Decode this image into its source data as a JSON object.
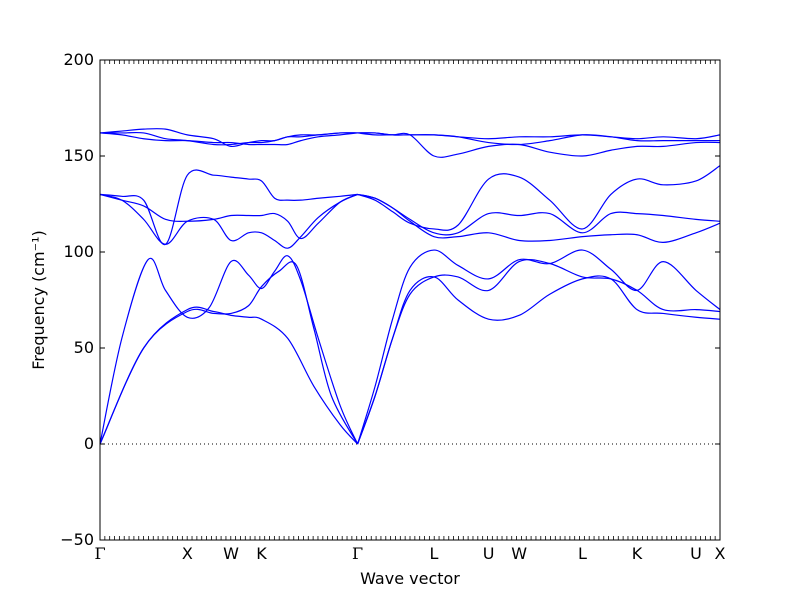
{
  "chart_data": {
    "type": "line",
    "title": "",
    "xlabel": "Wave vector",
    "ylabel": "Frequency (cm⁻¹)",
    "ylim": [
      -50,
      200
    ],
    "yticks": [
      -50,
      0,
      50,
      100,
      150,
      200
    ],
    "xlim": [
      0,
      14.2
    ],
    "zero_line": true,
    "line_color": "#0000ff",
    "high_symmetry_points": [
      {
        "label": "Γ",
        "x": 0
      },
      {
        "label": "X",
        "x": 2.0
      },
      {
        "label": "W",
        "x": 3.0
      },
      {
        "label": "K",
        "x": 3.7
      },
      {
        "label": "Γ",
        "x": 5.9
      },
      {
        "label": "L",
        "x": 7.65
      },
      {
        "label": "U",
        "x": 8.9
      },
      {
        "label": "W",
        "x": 9.6
      },
      {
        "label": "L",
        "x": 11.05
      },
      {
        "label": "K",
        "x": 12.3
      },
      {
        "label": "U",
        "x": 13.65
      },
      {
        "label": "X",
        "x": 14.2
      }
    ],
    "series": [
      {
        "x": [
          0,
          1.0,
          2.0,
          2.6,
          3.0,
          3.4,
          3.7,
          4.3,
          4.9,
          5.5,
          5.9
        ],
        "y": [
          0,
          50,
          70,
          69,
          67,
          66,
          65,
          55,
          30,
          10,
          0
        ]
      },
      {
        "x": [
          0,
          1.0,
          2.0,
          2.6,
          3.0,
          3.4,
          3.7,
          4.1,
          4.5,
          4.9,
          5.3,
          5.9
        ],
        "y": [
          0,
          50,
          69,
          68,
          68,
          72,
          82,
          90,
          93,
          60,
          25,
          0
        ]
      },
      {
        "x": [
          0,
          0.5,
          1.1,
          1.5,
          2.0,
          2.5,
          3.0,
          3.4,
          3.7,
          4.0,
          4.3,
          4.6,
          5.0,
          5.5,
          5.9
        ],
        "y": [
          0,
          55,
          96,
          80,
          66,
          71,
          95,
          88,
          81,
          90,
          98,
          85,
          55,
          20,
          0
        ]
      },
      {
        "x": [
          0,
          0.5,
          1.0,
          1.5,
          2.0,
          2.6,
          3.0,
          3.4,
          3.7,
          4.0,
          4.3,
          4.6,
          5.0,
          5.5,
          5.9
        ],
        "y": [
          130,
          127,
          117,
          104,
          116,
          117,
          106,
          110,
          110,
          106,
          102,
          108,
          118,
          126,
          130
        ]
      },
      {
        "x": [
          0,
          0.5,
          1.0,
          1.5,
          2.0,
          2.6,
          3.0,
          3.4,
          3.7,
          4.0,
          4.3,
          4.6,
          5.0,
          5.5,
          5.9
        ],
        "y": [
          130,
          127,
          124,
          117,
          116,
          117,
          119,
          119,
          119,
          120,
          116,
          107,
          115,
          126,
          130
        ]
      },
      {
        "x": [
          0,
          0.5,
          1.0,
          1.5,
          2.0,
          2.6,
          3.0,
          3.4,
          3.7,
          4.0,
          4.3,
          4.6,
          5.0,
          5.5,
          5.9
        ],
        "y": [
          130,
          129,
          127,
          104,
          140,
          140,
          139,
          138,
          137,
          128,
          127,
          127,
          128,
          129,
          130
        ]
      },
      {
        "x": [
          0,
          0.5,
          1.0,
          1.5,
          2.0,
          2.6,
          3.0,
          3.4,
          3.7,
          4.0,
          4.3,
          4.6,
          5.0,
          5.5,
          5.9
        ],
        "y": [
          162,
          161,
          159,
          158,
          158,
          157,
          157,
          156,
          156,
          156,
          156,
          158,
          160,
          161,
          162
        ]
      },
      {
        "x": [
          0,
          0.5,
          1.0,
          1.5,
          2.0,
          2.6,
          3.0,
          3.4,
          3.7,
          4.0,
          4.3,
          4.6,
          5.0,
          5.5,
          5.9
        ],
        "y": [
          162,
          163,
          164,
          164,
          161,
          159,
          155,
          157,
          158,
          158,
          160,
          161,
          161,
          162,
          162
        ]
      },
      {
        "x": [
          0,
          0.5,
          1.0,
          1.5,
          2.0,
          2.6,
          3.0,
          3.4,
          3.7,
          4.0,
          4.3,
          4.6,
          5.0,
          5.5,
          5.9
        ],
        "y": [
          162,
          162,
          162,
          159,
          158,
          156,
          156,
          157,
          157,
          158,
          160,
          160,
          161,
          162,
          162
        ]
      },
      {
        "x": [
          5.9,
          6.3,
          6.7,
          7.1,
          7.65,
          8.2,
          8.9,
          9.6,
          10.3,
          11.05,
          11.7,
          12.3,
          12.9,
          13.65,
          14.2
        ],
        "y": [
          0,
          25,
          55,
          78,
          87,
          87,
          80,
          95,
          94,
          87,
          86,
          80,
          70,
          70,
          69
        ]
      },
      {
        "x": [
          5.9,
          6.3,
          6.7,
          7.1,
          7.65,
          8.2,
          8.9,
          9.6,
          10.3,
          11.05,
          11.7,
          12.3,
          12.9,
          13.65,
          14.2
        ],
        "y": [
          0,
          25,
          55,
          80,
          87,
          75,
          65,
          67,
          78,
          86,
          86,
          70,
          68,
          66,
          65
        ]
      },
      {
        "x": [
          5.9,
          6.3,
          6.7,
          7.1,
          7.65,
          8.2,
          8.9,
          9.6,
          10.3,
          11.05,
          11.7,
          12.3,
          12.9,
          13.65,
          14.2
        ],
        "y": [
          0,
          30,
          65,
          92,
          101,
          93,
          86,
          96,
          94,
          101,
          91,
          80,
          95,
          80,
          70
        ]
      },
      {
        "x": [
          5.9,
          6.3,
          6.7,
          7.1,
          7.65,
          8.2,
          8.9,
          9.6,
          10.3,
          11.05,
          11.7,
          12.3,
          12.9,
          13.65,
          14.2
        ],
        "y": [
          130,
          127,
          121,
          115,
          112,
          114,
          138,
          139,
          127,
          112,
          130,
          138,
          135,
          137,
          145
        ]
      },
      {
        "x": [
          5.9,
          6.3,
          6.7,
          7.1,
          7.65,
          8.2,
          8.9,
          9.6,
          10.3,
          11.05,
          11.7,
          12.3,
          12.9,
          13.65,
          14.2
        ],
        "y": [
          130,
          128,
          123,
          117,
          110,
          110,
          120,
          119,
          120,
          110,
          120,
          120,
          119,
          117,
          116
        ]
      },
      {
        "x": [
          5.9,
          6.3,
          6.7,
          7.1,
          7.65,
          8.2,
          8.9,
          9.6,
          10.3,
          11.05,
          11.7,
          12.3,
          12.9,
          13.65,
          14.2
        ],
        "y": [
          130,
          128,
          123,
          116,
          108,
          108,
          110,
          106,
          106,
          108,
          109,
          109,
          105,
          110,
          115
        ]
      },
      {
        "x": [
          5.9,
          6.3,
          6.7,
          7.1,
          7.65,
          8.2,
          8.9,
          9.6,
          10.3,
          11.05,
          11.7,
          12.3,
          12.9,
          13.65,
          14.2
        ],
        "y": [
          162,
          161,
          161,
          161,
          150,
          151,
          155,
          156,
          152,
          150,
          153,
          155,
          155,
          157,
          157
        ]
      },
      {
        "x": [
          5.9,
          6.3,
          6.7,
          7.1,
          7.65,
          8.2,
          8.9,
          9.6,
          10.3,
          11.05,
          11.7,
          12.3,
          12.9,
          13.65,
          14.2
        ],
        "y": [
          162,
          162,
          161,
          161,
          161,
          160,
          159,
          160,
          160,
          161,
          160,
          159,
          160,
          159,
          161
        ]
      },
      {
        "x": [
          5.9,
          6.3,
          6.7,
          7.1,
          7.65,
          8.2,
          8.9,
          9.6,
          10.3,
          11.05,
          11.7,
          12.3,
          12.9,
          13.65,
          14.2
        ],
        "y": [
          162,
          162,
          161,
          161,
          161,
          160,
          157,
          156,
          158,
          161,
          160,
          158,
          158,
          158,
          158
        ]
      }
    ]
  }
}
